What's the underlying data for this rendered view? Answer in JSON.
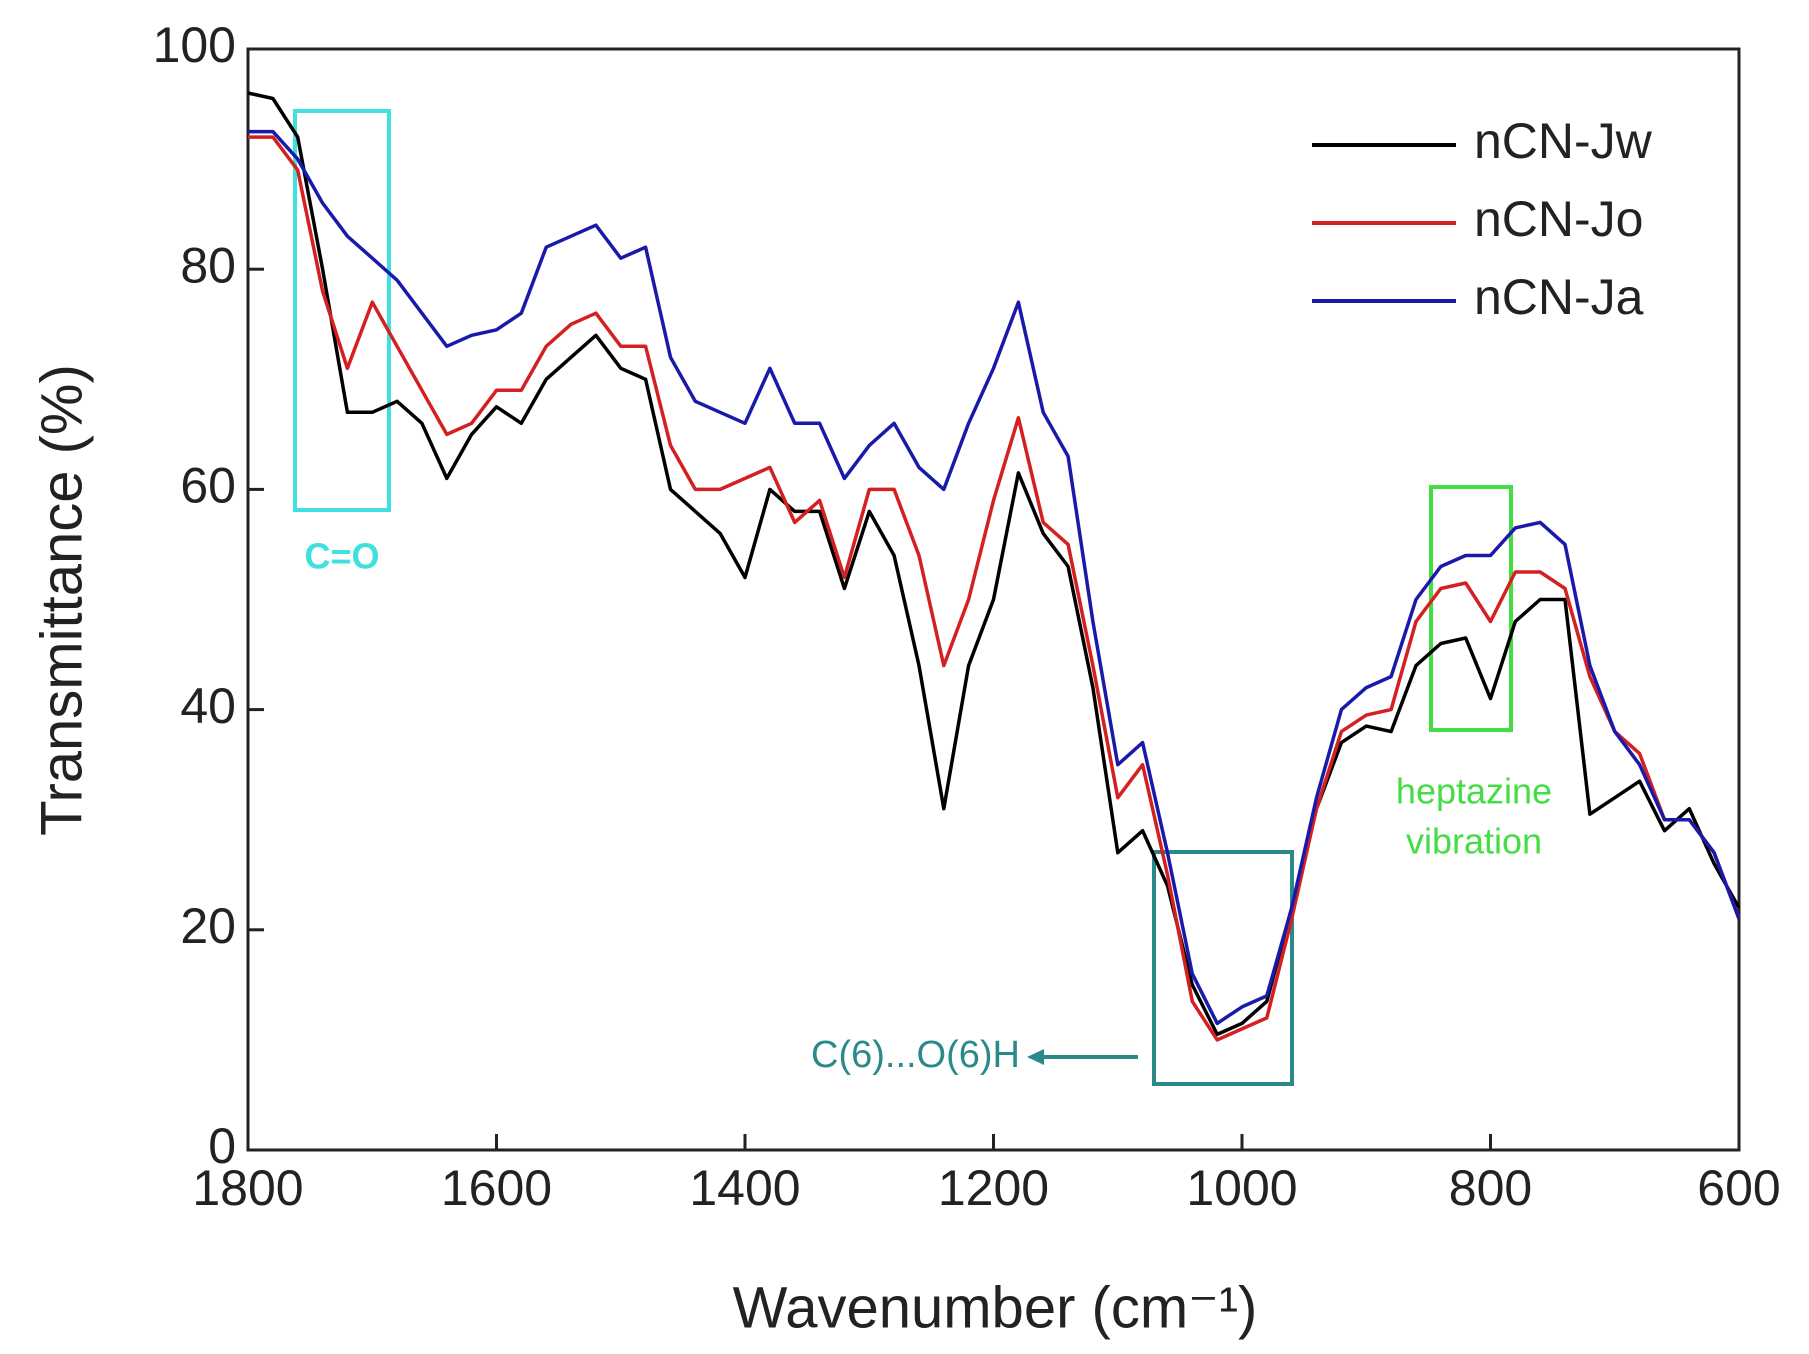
{
  "chart_data": {
    "type": "line",
    "xlabel": "Wavenumber (cm⁻¹)",
    "ylabel": "Transmittance (%)",
    "x": [
      1800,
      1780,
      1760,
      1740,
      1720,
      1700,
      1680,
      1660,
      1640,
      1620,
      1600,
      1580,
      1560,
      1540,
      1520,
      1500,
      1480,
      1460,
      1440,
      1420,
      1400,
      1380,
      1360,
      1340,
      1320,
      1300,
      1280,
      1260,
      1240,
      1220,
      1200,
      1180,
      1160,
      1140,
      1120,
      1100,
      1080,
      1060,
      1040,
      1020,
      1000,
      980,
      960,
      940,
      920,
      900,
      880,
      860,
      840,
      820,
      800,
      780,
      760,
      740,
      720,
      700,
      680,
      660,
      640,
      620,
      600
    ],
    "series": [
      {
        "name": "nCN-Jw",
        "color": "#000000",
        "values": [
          96,
          95.5,
          92,
          80,
          67,
          67,
          68,
          66,
          61,
          65,
          67.5,
          66,
          70,
          72,
          74,
          71,
          70,
          60,
          58,
          56,
          52,
          60,
          58,
          58,
          51,
          58,
          54,
          44,
          31,
          44,
          50,
          61.5,
          56,
          53,
          42,
          27,
          29,
          24,
          15,
          10.5,
          11.5,
          13.5,
          22,
          31,
          37,
          38.5,
          38,
          44,
          46,
          46.5,
          41,
          48,
          50,
          50,
          30.5,
          32,
          33.5,
          29,
          31,
          26,
          22
        ]
      },
      {
        "name": "nCN-Jo",
        "color": "#d42020",
        "values": [
          92,
          92,
          89,
          78,
          71,
          77,
          73,
          69,
          65,
          66,
          69,
          69,
          73,
          75,
          76,
          73,
          73,
          64,
          60,
          60,
          61,
          62,
          57,
          59,
          52,
          60,
          60,
          54,
          44,
          50,
          59,
          66.5,
          57,
          55,
          44,
          32,
          35,
          25,
          13.5,
          10,
          11,
          12,
          21,
          31,
          38,
          39.5,
          40,
          48,
          51,
          51.5,
          48,
          52.5,
          52.5,
          51,
          43,
          38,
          36,
          30,
          30,
          27,
          21
        ]
      },
      {
        "name": "nCN-Ja",
        "color": "#1a1aaa",
        "values": [
          92.5,
          92.5,
          90,
          86,
          83,
          81,
          79,
          76,
          73,
          74,
          74.5,
          76,
          82,
          83,
          84,
          81,
          82,
          72,
          68,
          67,
          66,
          71,
          66,
          66,
          61,
          64,
          66,
          62,
          60,
          66,
          71,
          77,
          67,
          63,
          48,
          35,
          37,
          27,
          16,
          11.5,
          13,
          14,
          22,
          32,
          40,
          42,
          43,
          50,
          53,
          54,
          54,
          56.5,
          57,
          55,
          44,
          38,
          35,
          30,
          30,
          27,
          21
        ]
      }
    ],
    "xlim": [
      1800,
      600
    ],
    "xticks": [
      1800,
      1600,
      1400,
      1200,
      1000,
      800,
      600
    ],
    "ylim": [
      0,
      100
    ],
    "yticks": [
      0,
      20,
      40,
      60,
      80,
      100
    ],
    "legend": "upper right",
    "annotations": {
      "carbonyl": "C=O",
      "heptazine": [
        "heptazine",
        "vibration"
      ],
      "hydroxyl": "C(6)...O(6)H"
    }
  }
}
